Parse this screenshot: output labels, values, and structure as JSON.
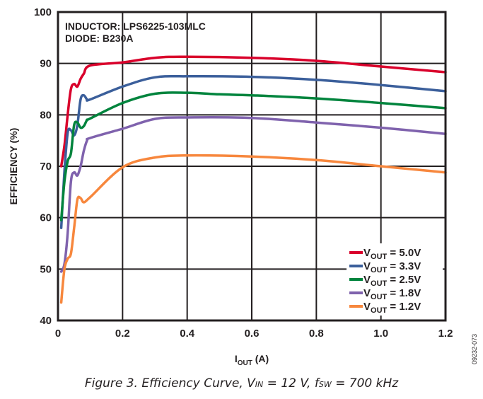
{
  "chart_data": {
    "type": "line",
    "title": "",
    "xlabel": "I_OUT (A)",
    "xlabel_main": "I",
    "xlabel_sub": "OUT",
    "xlabel_unit": " (A)",
    "ylabel": "EFFICIENCY (%)",
    "xlim": [
      0,
      1.2
    ],
    "ylim": [
      40,
      100
    ],
    "xticks": [
      0,
      0.2,
      0.4,
      0.6,
      0.8,
      1.0,
      1.2
    ],
    "xtick_labels": [
      "0",
      "0.2",
      "0.4",
      "0.6",
      "0.8",
      "1.0",
      "1.2"
    ],
    "yticks": [
      40,
      50,
      60,
      70,
      80,
      90,
      100
    ],
    "ytick_labels": [
      "40",
      "50",
      "60",
      "70",
      "80",
      "90",
      "100"
    ],
    "grid": true,
    "legend_position": "bottom-right",
    "annotations": [
      "INDUCTOR: LPS6225-103MLC",
      "DIODE: B230A"
    ],
    "series": [
      {
        "name": "VOUT = 5.0V",
        "label_main": "V",
        "label_sub": "OUT",
        "label_value": " = 5.0V",
        "color": "#d9002b",
        "x": [
          0.01,
          0.02,
          0.03,
          0.04,
          0.05,
          0.06,
          0.07,
          0.08,
          0.1,
          0.2,
          0.3,
          0.4,
          0.6,
          0.8,
          1.0,
          1.2
        ],
        "y": [
          70,
          74,
          80,
          85,
          86,
          85.5,
          87,
          88,
          89.6,
          90.2,
          91.1,
          91.3,
          91.1,
          90.5,
          89.4,
          88.3
        ]
      },
      {
        "name": "VOUT = 3.3V",
        "label_main": "V",
        "label_sub": "OUT",
        "label_value": " = 3.3V",
        "color": "#3b5f9b",
        "x": [
          0.01,
          0.02,
          0.03,
          0.04,
          0.05,
          0.06,
          0.07,
          0.08,
          0.09,
          0.1,
          0.2,
          0.3,
          0.4,
          0.6,
          0.8,
          1.0,
          1.2
        ],
        "y": [
          58,
          69,
          76.5,
          77,
          76,
          78,
          83,
          83.8,
          83,
          83,
          85.5,
          87.3,
          87.5,
          87.4,
          86.8,
          85.8,
          84.6
        ]
      },
      {
        "name": "VOUT = 2.5V",
        "label_main": "V",
        "label_sub": "OUT",
        "label_value": " = 2.5V",
        "color": "#00843d",
        "x": [
          0.01,
          0.02,
          0.03,
          0.04,
          0.05,
          0.06,
          0.07,
          0.08,
          0.09,
          0.1,
          0.2,
          0.3,
          0.4,
          0.5,
          0.6,
          0.8,
          1.0,
          1.2
        ],
        "y": [
          59.5,
          67,
          71,
          72.5,
          78,
          78.5,
          77.5,
          77.8,
          79,
          79.3,
          82.3,
          84.1,
          84.3,
          84,
          83.8,
          83.2,
          82.3,
          81.3
        ]
      },
      {
        "name": "VOUT = 1.8V",
        "label_main": "V",
        "label_sub": "OUT",
        "label_value": " = 1.8V",
        "color": "#7f62ad",
        "x": [
          0.01,
          0.02,
          0.03,
          0.04,
          0.05,
          0.06,
          0.07,
          0.08,
          0.09,
          0.1,
          0.2,
          0.3,
          0.4,
          0.6,
          0.8,
          1.0,
          1.2
        ],
        "y": [
          49.5,
          51,
          57,
          67,
          68.8,
          68.2,
          70,
          73,
          75,
          75.5,
          77.3,
          79.2,
          79.5,
          79.4,
          78.5,
          77.5,
          76.3
        ]
      },
      {
        "name": "VOUT = 1.2V",
        "label_main": "V",
        "label_sub": "OUT",
        "label_value": " = 1.2V",
        "color": "#f7873d",
        "x": [
          0.01,
          0.02,
          0.03,
          0.04,
          0.05,
          0.06,
          0.07,
          0.08,
          0.1,
          0.2,
          0.3,
          0.4,
          0.6,
          0.8,
          1.0,
          1.2
        ],
        "y": [
          43.5,
          50,
          52,
          53,
          58,
          63.5,
          63.8,
          63,
          64,
          69.8,
          71.7,
          72.1,
          71.9,
          71.2,
          70,
          68.8
        ]
      }
    ]
  },
  "figure_id": "09232-073",
  "caption": {
    "prefix": "Figure 3. Efficiency Curve, V",
    "vin_sub": "IN",
    "middle": " = 12 V, f",
    "fsw_sub": "SW",
    "suffix": " = 700 kHz"
  }
}
